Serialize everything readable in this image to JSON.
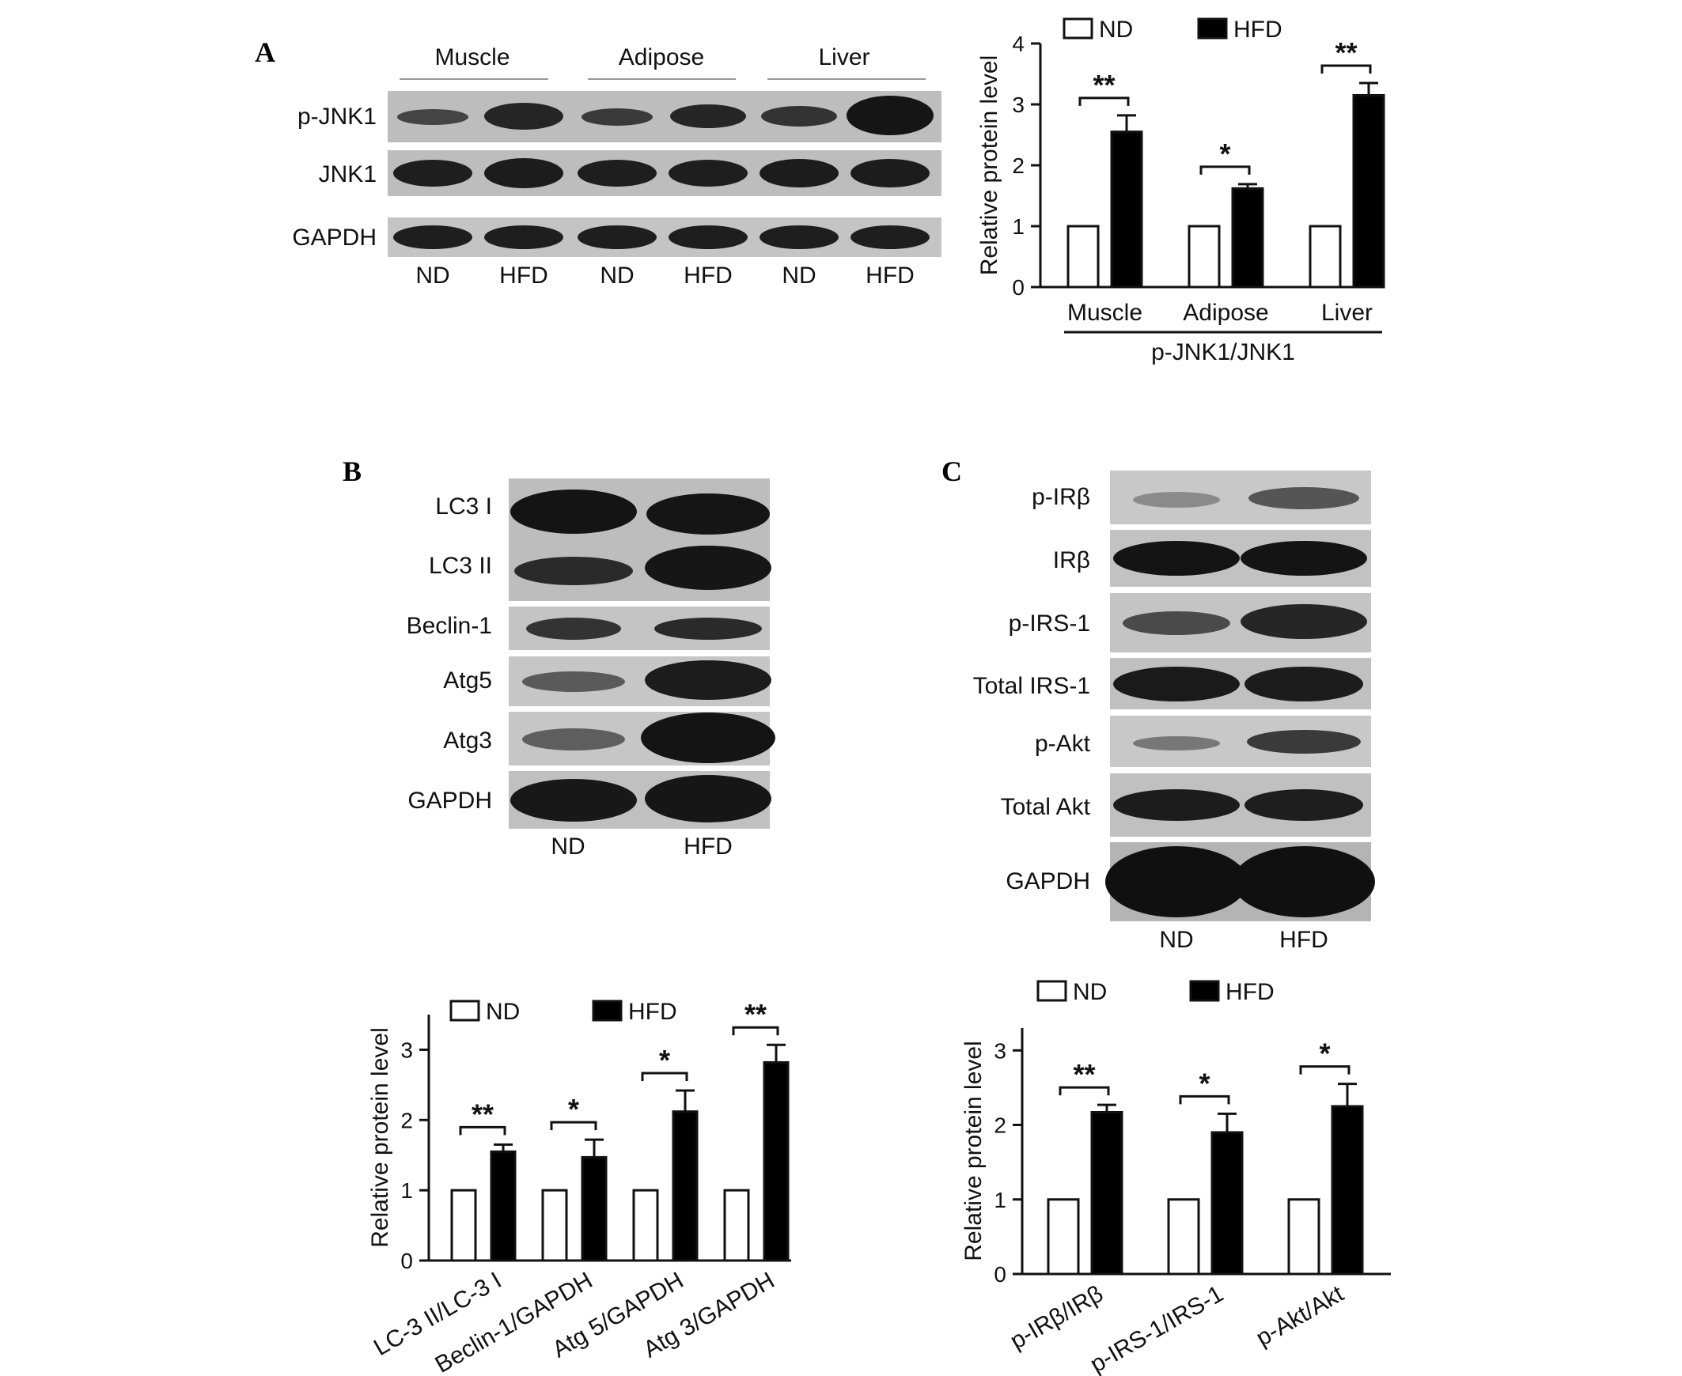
{
  "panels": {
    "a": {
      "letter": "A",
      "blot": {
        "tissues": [
          "Muscle",
          "Adipose",
          "Liver"
        ],
        "rows": [
          "p-JNK1",
          "JNK1",
          "GAPDH"
        ],
        "lanes": [
          "ND",
          "HFD",
          "ND",
          "HFD",
          "ND",
          "HFD"
        ]
      }
    },
    "b": {
      "letter": "B",
      "blot": {
        "rows": [
          "LC3 I",
          "LC3 II",
          "Beclin-1",
          "Atg5",
          "Atg3",
          "GAPDH"
        ],
        "lanes": [
          "ND",
          "HFD"
        ]
      }
    },
    "c": {
      "letter": "C",
      "blot": {
        "rows": [
          "p-IRβ",
          "IRβ",
          "p-IRS-1",
          "Total IRS-1",
          "p-Akt",
          "Total Akt",
          "GAPDH"
        ],
        "lanes": [
          "ND",
          "HFD"
        ]
      }
    }
  },
  "chart_data": [
    {
      "id": "a",
      "type": "bar",
      "categories": [
        "Muscle",
        "Adipose",
        "Liver"
      ],
      "group_label": "p-JNK1/JNK1",
      "ylabel": "Relative protein level",
      "ylim": [
        0,
        4
      ],
      "yticks": [
        0,
        1,
        2,
        3,
        4
      ],
      "series": [
        {
          "name": "ND",
          "values": [
            1,
            1,
            1
          ],
          "color": "#ffffff"
        },
        {
          "name": "HFD",
          "values": [
            2.55,
            1.62,
            3.15
          ],
          "errors": [
            0.27,
            0.07,
            0.2
          ],
          "color": "#000000"
        }
      ],
      "significance": [
        "**",
        "*",
        "**"
      ],
      "legend": "top"
    },
    {
      "id": "b",
      "type": "bar",
      "categories": [
        "LC-3 II/LC-3 I",
        "Beclin-1/GAPDH",
        "Atg 5/GAPDH",
        "Atg 3/GAPDH"
      ],
      "ylabel": "Relative protein level",
      "ylim": [
        0,
        3.5
      ],
      "yticks": [
        0,
        1,
        2,
        3
      ],
      "series": [
        {
          "name": "ND",
          "values": [
            1,
            1,
            1,
            1
          ],
          "color": "#ffffff"
        },
        {
          "name": "HFD",
          "values": [
            1.55,
            1.47,
            2.12,
            2.82
          ],
          "errors": [
            0.1,
            0.25,
            0.3,
            0.25
          ],
          "color": "#000000"
        }
      ],
      "significance": [
        "**",
        "*",
        "*",
        "**"
      ],
      "legend": "top"
    },
    {
      "id": "c",
      "type": "bar",
      "categories": [
        "p-IRβ/IRβ",
        "p-IRS-1/IRS-1",
        "p-Akt/Akt"
      ],
      "ylabel": "Relative protein level",
      "ylim": [
        0,
        3.3
      ],
      "yticks": [
        0,
        1,
        2,
        3
      ],
      "series": [
        {
          "name": "ND",
          "values": [
            1,
            1,
            1
          ],
          "color": "#ffffff"
        },
        {
          "name": "HFD",
          "values": [
            2.17,
            1.9,
            2.25
          ],
          "errors": [
            0.1,
            0.25,
            0.3
          ],
          "color": "#000000"
        }
      ],
      "significance": [
        "**",
        "*",
        "*"
      ],
      "legend": "top"
    }
  ]
}
